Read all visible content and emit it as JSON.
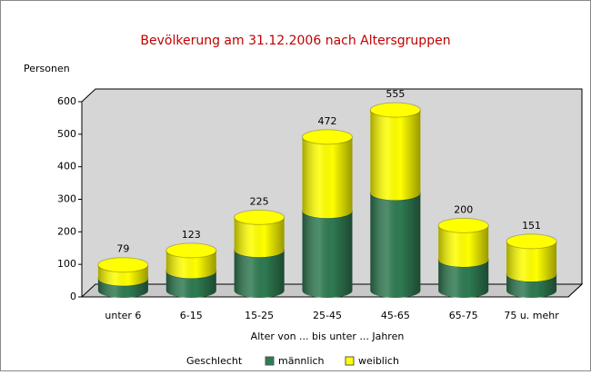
{
  "chart_data": {
    "type": "bar3d-stacked",
    "title": "Bevölkerung am 31.12.2006 nach Altersgruppen",
    "y_label": "Personen",
    "x_label": "Alter von ... bis unter ... Jahren",
    "legend_title": "Geschlecht",
    "categories": [
      "unter 6",
      "6-15",
      "15-25",
      "25-45",
      "45-65",
      "65-75",
      "75 u. mehr"
    ],
    "series": [
      {
        "name": "männlich",
        "color": "#2f7a52",
        "values": [
          37,
          60,
          125,
          245,
          300,
          95,
          50
        ]
      },
      {
        "name": "weiblich",
        "color": "#ffff00",
        "values": [
          42,
          63,
          100,
          227,
          255,
          105,
          101
        ]
      }
    ],
    "totals": [
      79,
      123,
      225,
      472,
      555,
      200,
      151
    ],
    "ylim": [
      0,
      600
    ],
    "yticks": [
      0,
      100,
      200,
      300,
      400,
      500,
      600
    ]
  }
}
